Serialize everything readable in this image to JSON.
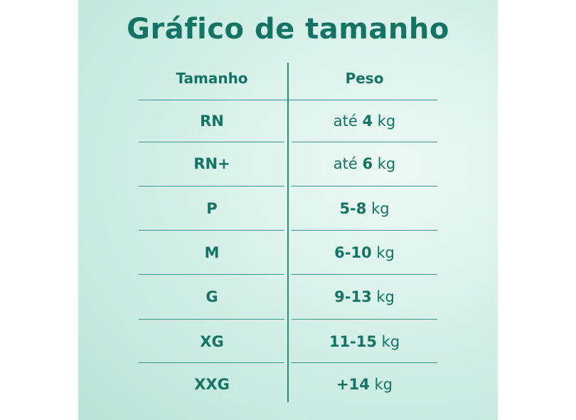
{
  "title": "Gráfico de tamanho",
  "headers": {
    "size": "Tamanho",
    "weight": "Peso"
  },
  "colors": {
    "text": "#137466",
    "background": "#d6f0e8"
  },
  "rows": [
    {
      "size": "RN",
      "prefix": "até ",
      "bold": "4",
      "unit": " kg"
    },
    {
      "size": "RN+",
      "prefix": "até ",
      "bold": "6",
      "unit": " kg"
    },
    {
      "size": "P",
      "prefix": "",
      "bold": "5-8",
      "unit": " kg"
    },
    {
      "size": "M",
      "prefix": "",
      "bold": "6-10",
      "unit": " kg"
    },
    {
      "size": "G",
      "prefix": "",
      "bold": "9-13",
      "unit": " kg"
    },
    {
      "size": "XG",
      "prefix": "",
      "bold": "11-15",
      "unit": " kg"
    },
    {
      "size": "XXG",
      "prefix": "",
      "bold": "+14",
      "unit": " kg"
    }
  ]
}
